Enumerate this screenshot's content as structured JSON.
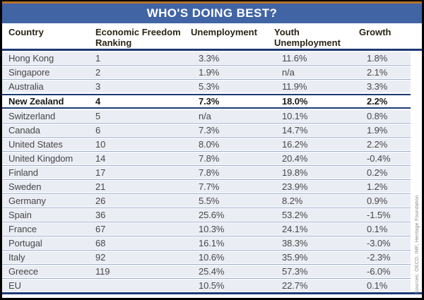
{
  "title": "WHO'S DOING BEST?",
  "source_note": "Sources: OECD, IMF, Heritage Foundation",
  "colors": {
    "banner-blue": "#4164a5",
    "accent-orange": "#b5722c",
    "navy-rule": "#1c3a75",
    "row-bg": "#eaedf4",
    "separator": "#9aa9c9",
    "highlight-bg": "#ffffff",
    "header-text": "#2b2416",
    "data-text": "#474747",
    "source-text": "#8a8a8a"
  },
  "chart_data": {
    "type": "table",
    "title": "WHO'S DOING BEST?",
    "source": "Sources: OECD, IMF, Heritage Foundation",
    "columns": [
      "Country",
      "Economic Freedom Ranking",
      "Unemployment",
      "Youth Unemployment",
      "Growth"
    ],
    "highlighted_row": "New Zealand",
    "rows": [
      {
        "country": "Hong Kong",
        "ranking": "1",
        "unemployment": "3.3%",
        "youth_unemployment": "11.6%",
        "growth": "1.8%",
        "highlight": false
      },
      {
        "country": "Singapore",
        "ranking": "2",
        "unemployment": "1.9%",
        "youth_unemployment": "n/a",
        "growth": "2.1%",
        "highlight": false
      },
      {
        "country": "Australia",
        "ranking": "3",
        "unemployment": "5.3%",
        "youth_unemployment": "11.9%",
        "growth": "3.3%",
        "highlight": false
      },
      {
        "country": "New Zealand",
        "ranking": "4",
        "unemployment": "7.3%",
        "youth_unemployment": "18.0%",
        "growth": "2.2%",
        "highlight": true
      },
      {
        "country": "Switzerland",
        "ranking": "5",
        "unemployment": "n/a",
        "youth_unemployment": "10.1%",
        "growth": "0.8%",
        "highlight": false
      },
      {
        "country": "Canada",
        "ranking": "6",
        "unemployment": "7.3%",
        "youth_unemployment": "14.7%",
        "growth": "1.9%",
        "highlight": false
      },
      {
        "country": "United States",
        "ranking": "10",
        "unemployment": "8.0%",
        "youth_unemployment": "16.2%",
        "growth": "2.2%",
        "highlight": false
      },
      {
        "country": "United Kingdom",
        "ranking": "14",
        "unemployment": "7.8%",
        "youth_unemployment": "20.4%",
        "growth": "-0.4%",
        "highlight": false
      },
      {
        "country": "Finland",
        "ranking": "17",
        "unemployment": "7.8%",
        "youth_unemployment": "19.8%",
        "growth": "0.2%",
        "highlight": false
      },
      {
        "country": "Sweden",
        "ranking": "21",
        "unemployment": "7.7%",
        "youth_unemployment": "23.9%",
        "growth": "1.2%",
        "highlight": false
      },
      {
        "country": "Germany",
        "ranking": "26",
        "unemployment": "5.5%",
        "youth_unemployment": "8.2%",
        "growth": "0.9%",
        "highlight": false
      },
      {
        "country": "Spain",
        "ranking": "36",
        "unemployment": "25.6%",
        "youth_unemployment": "53.2%",
        "growth": "-1.5%",
        "highlight": false
      },
      {
        "country": "France",
        "ranking": "67",
        "unemployment": "10.3%",
        "youth_unemployment": "24.1%",
        "growth": "0.1%",
        "highlight": false
      },
      {
        "country": "Portugal",
        "ranking": "68",
        "unemployment": "16.1%",
        "youth_unemployment": "38.3%",
        "growth": "-3.0%",
        "highlight": false
      },
      {
        "country": "Italy",
        "ranking": "92",
        "unemployment": "10.6%",
        "youth_unemployment": "35.9%",
        "growth": "-2.3%",
        "highlight": false
      },
      {
        "country": "Greece",
        "ranking": "119",
        "unemployment": "25.4%",
        "youth_unemployment": "57.3%",
        "growth": "-6.0%",
        "highlight": false
      },
      {
        "country": "EU",
        "ranking": "",
        "unemployment": "10.5%",
        "youth_unemployment": "22.7%",
        "growth": "0.1%",
        "highlight": false
      }
    ]
  }
}
